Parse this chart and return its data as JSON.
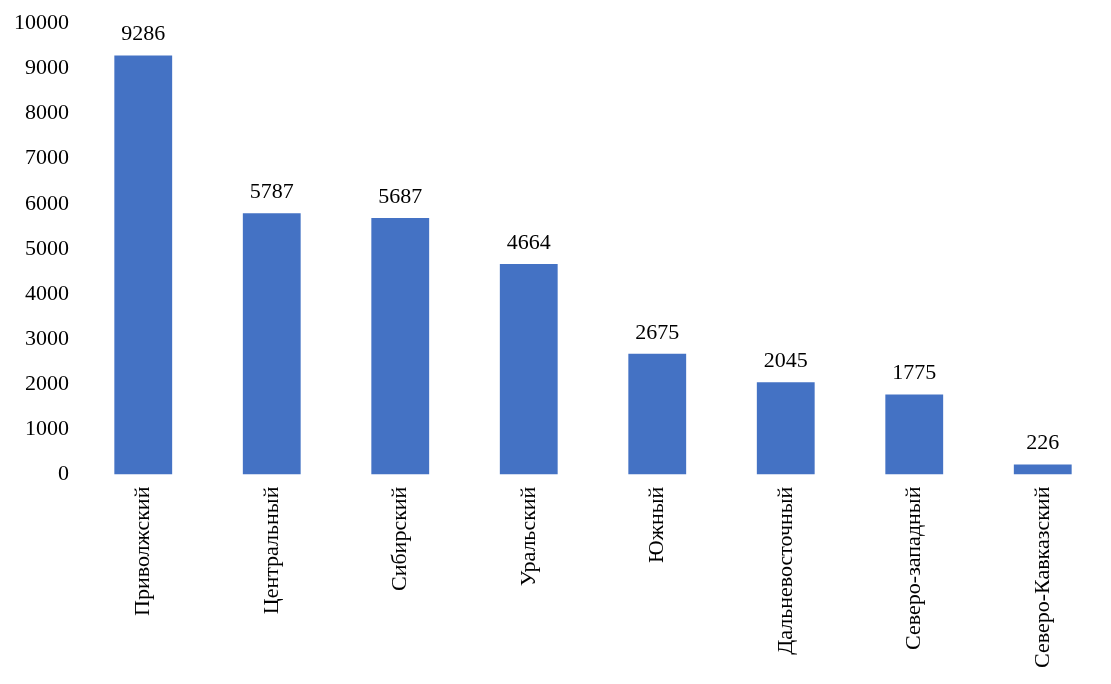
{
  "chart_data": {
    "type": "bar",
    "categories": [
      "Приволжский",
      "Центральный",
      "Сибирский",
      "Уральский",
      "Южный",
      "Дальневосточный",
      "Северо-западный",
      "Северо-Кавказский"
    ],
    "values": [
      9286,
      5787,
      5687,
      4664,
      2675,
      2045,
      1775,
      226
    ],
    "color": "#4472c4",
    "ylim": [
      0,
      10000
    ],
    "yticks": [
      0,
      1000,
      2000,
      3000,
      4000,
      5000,
      6000,
      7000,
      8000,
      9000,
      10000
    ],
    "grid": false,
    "data_labels": true
  }
}
